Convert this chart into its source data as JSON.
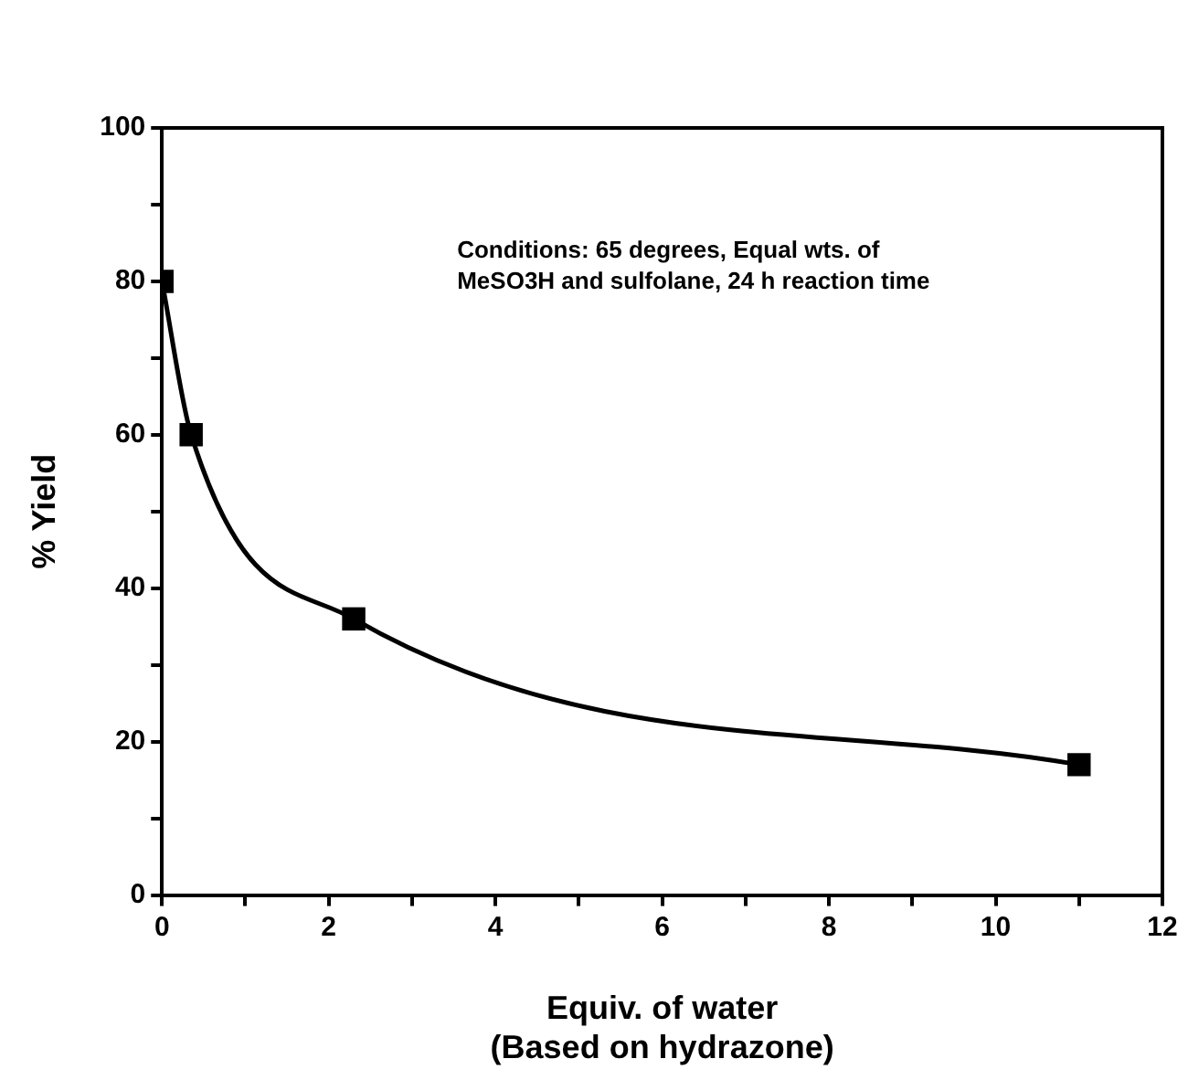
{
  "chart_data": {
    "type": "line",
    "x": [
      0,
      0.35,
      2.3,
      11
    ],
    "series": [
      {
        "color": "#000000",
        "values": [
          80,
          60,
          36,
          17
        ]
      }
    ],
    "xlabel": "Equiv. of water\n(Based on hydrazone)",
    "ylabel": "% Yield",
    "xlim": [
      0,
      12
    ],
    "xticks": [
      0,
      {
        "value": 1,
        "label": null
      },
      2,
      {
        "value": 3,
        "label": null
      },
      4,
      {
        "value": 5,
        "label": null
      },
      6,
      {
        "value": 7,
        "label": null
      },
      8,
      {
        "value": 9,
        "label": null
      },
      10,
      {
        "value": 11,
        "label": null
      },
      12
    ],
    "ylim": [
      0,
      100
    ],
    "yticks": [
      0,
      {
        "value": 10,
        "label": null
      },
      20,
      {
        "value": 30,
        "label": null
      },
      40,
      {
        "value": 50,
        "label": null
      },
      60,
      {
        "value": 70,
        "label": null
      },
      80,
      {
        "value": 90,
        "label": null
      },
      100
    ],
    "annotations": [
      "Conditions: 65 degrees, Equal wts. of\nMeSO3H and sulfolane, 24 h reaction time"
    ],
    "grid": false,
    "legend": false,
    "marker": "square",
    "line_style": "solid"
  }
}
